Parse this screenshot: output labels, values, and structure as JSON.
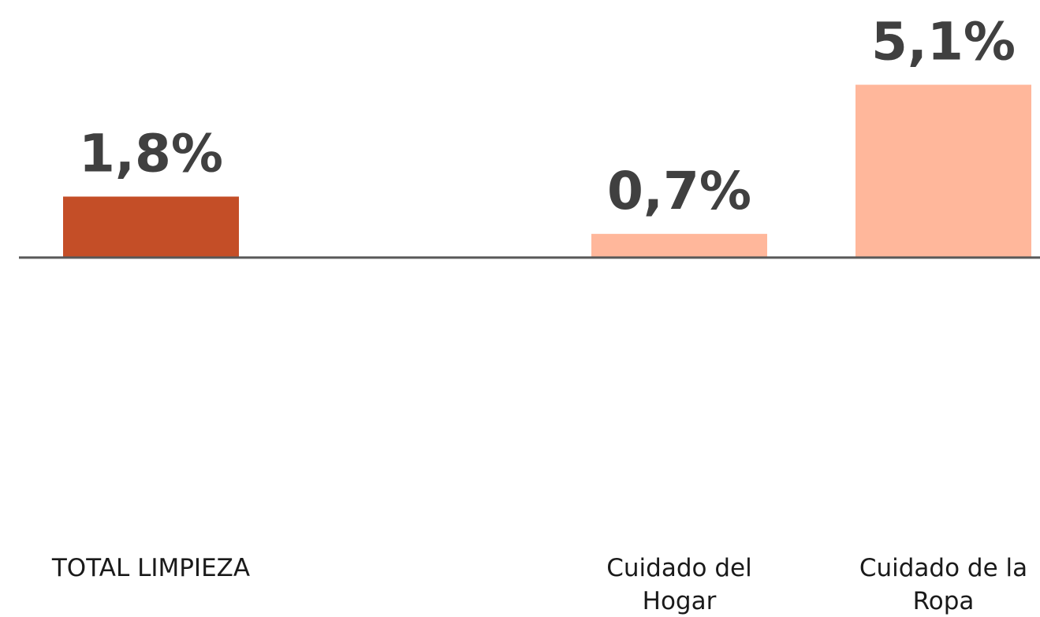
{
  "chart_data": {
    "type": "bar",
    "categories": [
      "TOTAL LIMPIEZA",
      null,
      "Cuidado del Hogar",
      "Cuidado de la Ropa"
    ],
    "values": [
      1.8,
      null,
      0.7,
      5.1
    ],
    "value_labels": [
      "1,8%",
      null,
      "0,7%",
      "5,1%"
    ],
    "colors": [
      "#c44e27",
      null,
      "#ffb79b",
      "#ffb79b"
    ],
    "ylim": [
      -8,
      7.6
    ]
  }
}
